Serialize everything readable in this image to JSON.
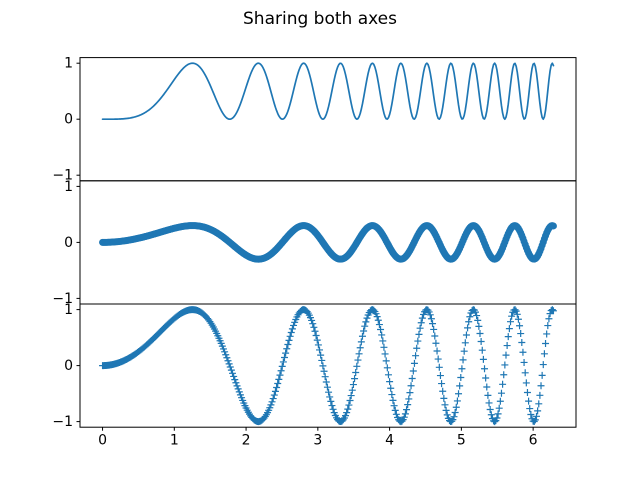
{
  "chart_data": {
    "type": "line",
    "title": "Sharing both axes",
    "x": {
      "min": 0,
      "max": 6.283185307179586,
      "n_points": 400,
      "description": "400 evenly spaced samples of x from 0 to 2π"
    },
    "xlim": [
      -0.3141592653589793,
      6.5973445725385655
    ],
    "ylim": [
      -1.1,
      1.1
    ],
    "x_ticks": {
      "values": [
        0,
        1,
        2,
        3,
        4,
        5,
        6
      ],
      "labels": [
        "0",
        "1",
        "2",
        "3",
        "4",
        "5",
        "6"
      ],
      "labels_shown_on": "bottom-subplot-only"
    },
    "y_ticks": {
      "values": [
        1,
        0,
        -1
      ],
      "labels": [
        "1",
        "0",
        "−1"
      ],
      "labels_shown_on": "every-subplot"
    },
    "grid": false,
    "legend": "none",
    "shared_axes": "both",
    "series_color": "#1f77b4",
    "axis_color": "#000000",
    "subplots": [
      {
        "position": "top",
        "formula": "y = sin(x²)²",
        "amplitude": 1.0,
        "power": 2,
        "plot_style": "line",
        "marker": "none",
        "line_width": 1.7
      },
      {
        "position": "middle",
        "formula": "y = 0.3·sin(x²)",
        "amplitude": 0.3,
        "power": 1,
        "plot_style": "markers",
        "marker": "circle",
        "marker_size": 7
      },
      {
        "position": "bottom",
        "formula": "y = sin(x²)",
        "amplitude": 1.0,
        "power": 1,
        "plot_style": "markers",
        "marker": "plus",
        "marker_size": 7
      }
    ]
  }
}
